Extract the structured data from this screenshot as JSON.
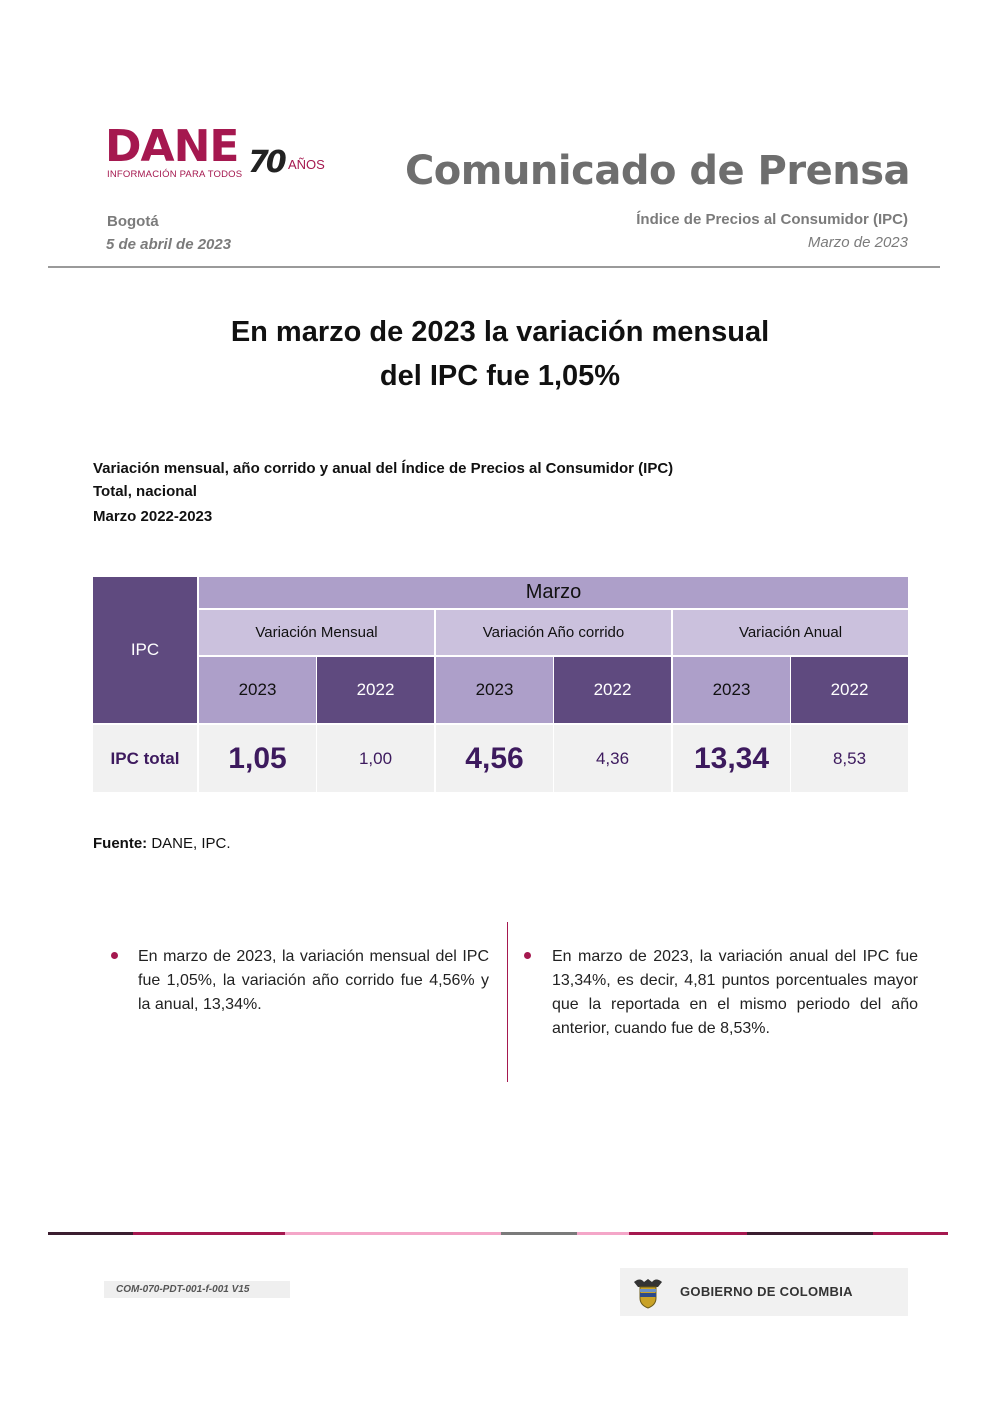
{
  "header": {
    "logo_text": "DANE",
    "logo_tagline": "INFORMACIÓN PARA TODOS",
    "logo_anniversary": "70",
    "logo_anniversary_suffix": "AÑOS",
    "doc_title": "Comunicado de Prensa",
    "city": "Bogotá",
    "date": "5 de abril de 2023",
    "subject": "Índice de Precios al Consumidor (IPC)",
    "period": "Marzo de 2023"
  },
  "headline": {
    "line1": "En marzo de 2023 la variación mensual",
    "line2": "del IPC fue 1,05%"
  },
  "caption": {
    "line1": "Variación mensual, año corrido y anual del Índice de Precios al Consumidor (IPC)",
    "line2": "Total, nacional",
    "line3": "Marzo 2022-2023"
  },
  "table": {
    "row_header": "IPC",
    "month": "Marzo",
    "groups": [
      "Variación Mensual",
      "Variación Año corrido",
      "Variación Anual"
    ],
    "years": [
      "2023",
      "2022",
      "2023",
      "2022",
      "2023",
      "2022"
    ],
    "row_label": "IPC total",
    "values": [
      "1,05",
      "1,00",
      "4,56",
      "4,36",
      "13,34",
      "8,53"
    ]
  },
  "source": {
    "label": "Fuente:",
    "text": " DANE, IPC."
  },
  "bullets": {
    "left": "En marzo de 2023, la variación mensual del IPC fue 1,05%, la variación año corrido fue 4,56% y la anual, 13,34%.",
    "right": "En marzo de 2023, la variación anual del IPC fue 13,34%, es decir, 4,81 puntos porcentuales mayor que la reportada en el mismo periodo del año anterior, cuando fue de 8,53%."
  },
  "footer": {
    "code": "COM-070-PDT-001-f-001 V15",
    "gov": "GOBIERNO DE COLOMBIA"
  },
  "colors": {
    "brand": "#a5184f",
    "table_dark": "#5f4a7f",
    "table_mid": "#ad9fc9",
    "table_light": "#cbc1dd",
    "value_text": "#3d1a5e"
  }
}
